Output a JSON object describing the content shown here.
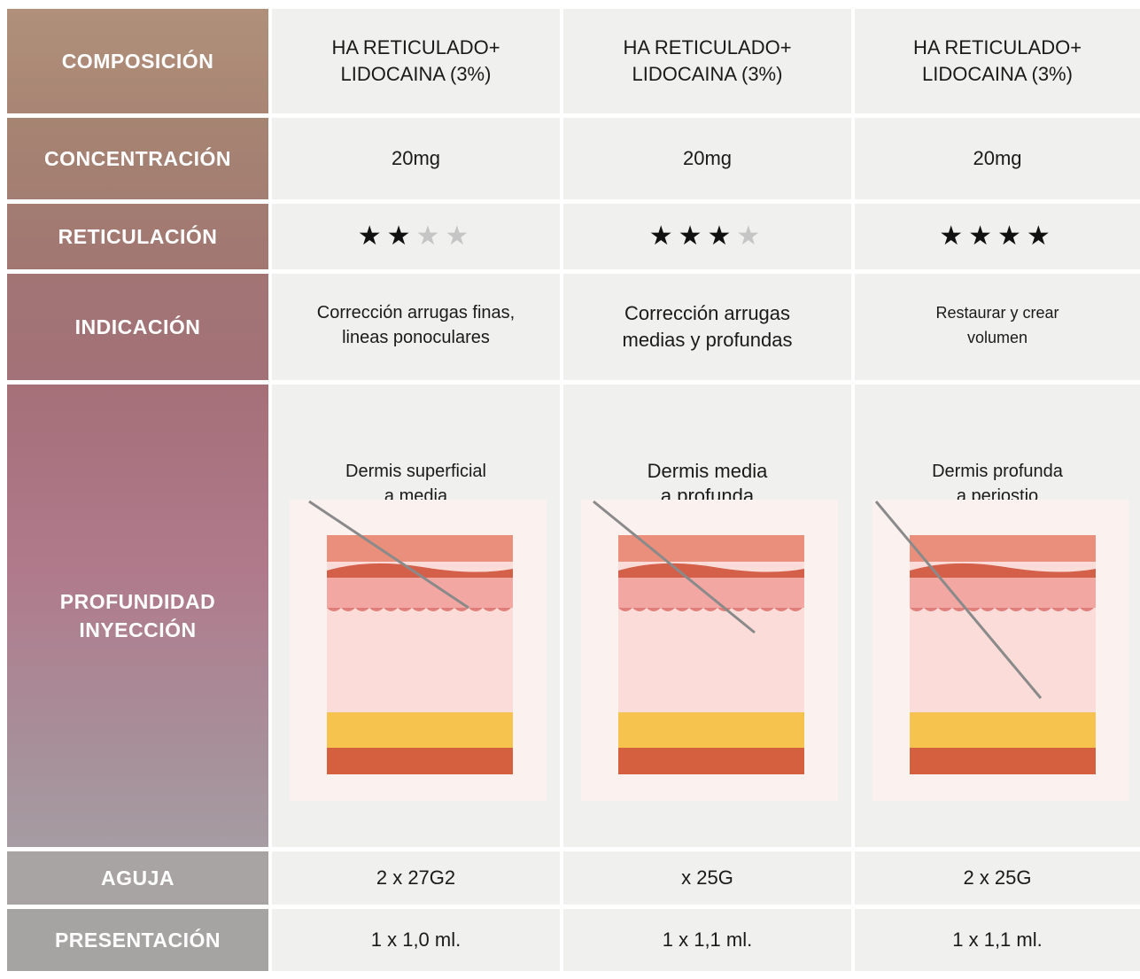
{
  "rows": {
    "composicion": {
      "label": "COMPOSICIÓN",
      "values": [
        {
          "line1": "HA RETICULADO+",
          "line2": "LIDOCAINA (3%)"
        },
        {
          "line1": "HA RETICULADO+",
          "line2": "LIDOCAINA (3%)"
        },
        {
          "line1": "HA RETICULADO+",
          "line2": "LIDOCAINA (3%)"
        }
      ]
    },
    "concentracion": {
      "label": "CONCENTRACIÓN",
      "values": [
        "20mg",
        "20mg",
        "20mg"
      ]
    },
    "reticulacion": {
      "label": "RETICULACIÓN",
      "max_stars": 4,
      "values": [
        2,
        3,
        4
      ]
    },
    "indicacion": {
      "label": "INDICACIÓN",
      "values": [
        {
          "line1": "Corrección arrugas finas,",
          "line2": "lineas ponoculares"
        },
        {
          "line1": "Corrección arrugas",
          "line2": "medias y profundas"
        },
        {
          "line1": "Restaurar y crear",
          "line2": "volumen"
        }
      ]
    },
    "profundidad": {
      "label_line1": "PROFUNDIDAD",
      "label_line2": "INYECCIÓN",
      "values": [
        {
          "line1": "Dermis superficial",
          "line2": "a media",
          "depth_level": "dermis-media"
        },
        {
          "line1": "Dermis media",
          "line2": "a profunda",
          "depth_level": "dermis-profunda"
        },
        {
          "line1": "Dermis profunda",
          "line2": "a periostio",
          "depth_level": "periostio"
        }
      ]
    },
    "aguja": {
      "label": "AGUJA",
      "values": [
        "2 x 27G2",
        "x 25G",
        "2 x 25G"
      ]
    },
    "presentacion": {
      "label": "PRESENTACIÓN",
      "values": [
        "1 x 1,0 ml.",
        "1 x 1,1 ml.",
        "1 x 1,1 ml."
      ]
    }
  },
  "colors": {
    "header_top": "#b0907a",
    "header_mid": "#b07a8c",
    "header_bottom": "#a6a3a3",
    "cell_bg": "#f0f0ef",
    "star_on": "#111111",
    "star_off": "#c5c5c5"
  },
  "icons": {
    "star": "star-icon",
    "skin": "skin-layers-needle-illustration"
  }
}
